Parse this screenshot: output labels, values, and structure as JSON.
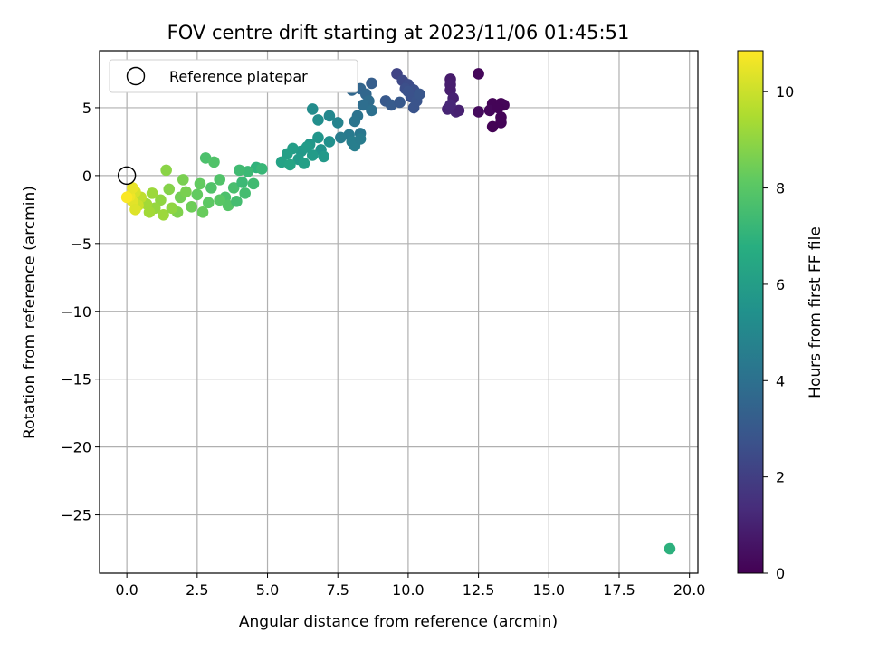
{
  "chart_data": {
    "type": "scatter",
    "title": "FOV centre drift starting at 2023/11/06 01:45:51",
    "xlabel": "Angular distance from reference (arcmin)",
    "ylabel": "Rotation from reference (arcmin)",
    "xlim": [
      -0.97,
      20.3
    ],
    "ylim": [
      -29.3,
      9.2
    ],
    "xticks": [
      0.0,
      2.5,
      5.0,
      7.5,
      10.0,
      12.5,
      15.0,
      17.5,
      20.0
    ],
    "xtick_labels": [
      "0.0",
      "2.5",
      "5.0",
      "7.5",
      "10.0",
      "12.5",
      "15.0",
      "17.5",
      "20.0"
    ],
    "yticks": [
      5,
      0,
      -5,
      -10,
      -15,
      -20,
      -25
    ],
    "ytick_labels": [
      "5",
      "0",
      "−5",
      "−10",
      "−15",
      "−20",
      "−25"
    ],
    "grid": true,
    "legend": {
      "placement": "top-left",
      "entries": [
        "Reference platepar"
      ]
    },
    "reference_point": {
      "x": 0.0,
      "y": 0.0,
      "label": "Reference platepar"
    },
    "colorbar": {
      "label": "Hours from first FF file",
      "colormap": "viridis",
      "range": [
        0,
        10.85
      ],
      "ticks": [
        0,
        2,
        4,
        6,
        8,
        10
      ],
      "tick_labels": [
        "0",
        "2",
        "4",
        "6",
        "8",
        "10"
      ]
    },
    "points": [
      [
        12.5,
        7.5,
        0.2
      ],
      [
        12.5,
        4.7,
        0.3
      ],
      [
        13.0,
        5.3,
        0.1
      ],
      [
        13.3,
        5.3,
        0.1
      ],
      [
        13.4,
        5.2,
        0.15
      ],
      [
        13.3,
        4.3,
        0.1
      ],
      [
        13.3,
        3.9,
        0.1
      ],
      [
        13.0,
        3.6,
        0.05
      ],
      [
        12.9,
        4.8,
        0.2
      ],
      [
        13.2,
        5.0,
        0.1
      ],
      [
        11.5,
        7.1,
        0.8
      ],
      [
        11.5,
        6.7,
        0.9
      ],
      [
        11.5,
        6.3,
        0.9
      ],
      [
        11.6,
        5.7,
        1.0
      ],
      [
        11.4,
        4.9,
        1.1
      ],
      [
        11.7,
        4.7,
        1.1
      ],
      [
        11.8,
        4.8,
        1.0
      ],
      [
        11.5,
        5.2,
        1.2
      ],
      [
        9.6,
        7.5,
        2.2
      ],
      [
        9.8,
        7.0,
        2.4
      ],
      [
        10.0,
        6.7,
        2.5
      ],
      [
        10.2,
        6.3,
        2.6
      ],
      [
        10.1,
        5.8,
        2.7
      ],
      [
        10.3,
        5.5,
        2.8
      ],
      [
        10.4,
        6.0,
        2.9
      ],
      [
        10.2,
        5.0,
        2.8
      ],
      [
        9.9,
        6.4,
        2.6
      ],
      [
        9.2,
        5.5,
        3.0
      ],
      [
        9.4,
        5.2,
        3.1
      ],
      [
        9.7,
        5.4,
        3.0
      ],
      [
        10.0,
        6.2,
        2.7
      ],
      [
        8.7,
        6.8,
        3.2
      ],
      [
        8.3,
        6.4,
        3.5
      ],
      [
        8.0,
        6.3,
        3.6
      ],
      [
        8.5,
        6.0,
        3.6
      ],
      [
        8.6,
        5.5,
        3.8
      ],
      [
        8.4,
        5.2,
        3.9
      ],
      [
        8.7,
        4.8,
        4.0
      ],
      [
        8.2,
        4.4,
        4.1
      ],
      [
        8.1,
        4.0,
        4.2
      ],
      [
        8.3,
        3.1,
        4.3
      ],
      [
        7.9,
        3.0,
        4.4
      ],
      [
        7.6,
        2.8,
        4.5
      ],
      [
        8.0,
        2.5,
        4.6
      ],
      [
        8.1,
        2.2,
        4.6
      ],
      [
        8.3,
        2.7,
        4.5
      ],
      [
        7.5,
        3.9,
        4.8
      ],
      [
        7.2,
        4.4,
        5.0
      ],
      [
        6.6,
        4.9,
        5.2
      ],
      [
        6.8,
        4.1,
        5.3
      ],
      [
        7.2,
        2.5,
        5.4
      ],
      [
        6.9,
        1.9,
        5.5
      ],
      [
        6.8,
        2.8,
        5.6
      ],
      [
        6.5,
        2.3,
        5.7
      ],
      [
        6.2,
        1.8,
        5.8
      ],
      [
        6.1,
        1.2,
        5.9
      ],
      [
        5.9,
        2.0,
        6.0
      ],
      [
        5.7,
        1.6,
        6.1
      ],
      [
        5.5,
        1.0,
        6.2
      ],
      [
        6.3,
        0.9,
        6.1
      ],
      [
        6.6,
        1.5,
        5.9
      ],
      [
        7.0,
        1.4,
        5.8
      ],
      [
        6.4,
        2.1,
        5.9
      ],
      [
        5.8,
        0.8,
        6.3
      ],
      [
        4.6,
        0.6,
        7.0
      ],
      [
        4.8,
        0.5,
        7.2
      ],
      [
        4.3,
        0.3,
        7.3
      ],
      [
        4.0,
        0.4,
        7.4
      ],
      [
        4.5,
        -0.6,
        7.4
      ],
      [
        4.2,
        -1.3,
        7.5
      ],
      [
        3.8,
        -0.9,
        7.6
      ],
      [
        3.5,
        -1.6,
        7.7
      ],
      [
        3.3,
        -0.3,
        7.8
      ],
      [
        3.0,
        -0.9,
        7.8
      ],
      [
        2.8,
        1.3,
        7.7
      ],
      [
        3.1,
        1.0,
        7.8
      ],
      [
        3.6,
        -2.2,
        7.9
      ],
      [
        3.3,
        -1.8,
        8.0
      ],
      [
        2.9,
        -2.0,
        8.1
      ],
      [
        2.5,
        -1.4,
        8.2
      ],
      [
        2.7,
        -2.7,
        8.3
      ],
      [
        2.3,
        -2.3,
        8.4
      ],
      [
        1.9,
        -1.6,
        8.5
      ],
      [
        2.0,
        -0.3,
        8.6
      ],
      [
        1.8,
        -2.7,
        8.7
      ],
      [
        1.5,
        -1.0,
        8.8
      ],
      [
        1.4,
        0.4,
        8.9
      ],
      [
        1.2,
        -1.8,
        9.0
      ],
      [
        1.0,
        -2.4,
        9.1
      ],
      [
        0.9,
        -1.3,
        9.2
      ],
      [
        0.7,
        -2.1,
        9.3
      ],
      [
        1.3,
        -2.9,
        9.2
      ],
      [
        1.6,
        -2.4,
        9.0
      ],
      [
        2.1,
        -1.2,
        8.6
      ],
      [
        3.9,
        -1.9,
        7.5
      ],
      [
        4.1,
        -0.5,
        7.3
      ],
      [
        2.6,
        -0.6,
        8.2
      ],
      [
        0.8,
        -2.7,
        9.3
      ],
      [
        0.5,
        -1.6,
        9.8
      ],
      [
        0.4,
        -2.2,
        10.0
      ],
      [
        0.3,
        -1.2,
        10.2
      ],
      [
        0.2,
        -1.9,
        10.4
      ],
      [
        0.1,
        -1.5,
        10.6
      ],
      [
        0.2,
        -0.9,
        10.5
      ],
      [
        0.3,
        -2.5,
        10.3
      ],
      [
        0.0,
        -1.6,
        10.8
      ],
      [
        19.3,
        -27.5,
        6.9
      ]
    ]
  }
}
